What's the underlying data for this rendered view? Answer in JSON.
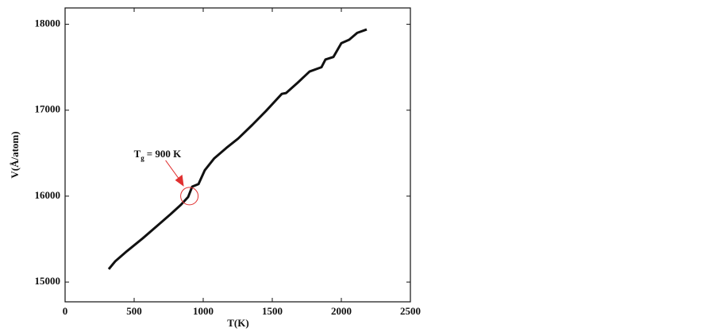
{
  "chart_data": {
    "type": "line",
    "xlabel": "T(K)",
    "ylabel": "V(Å/atom)",
    "xlim": [
      0,
      2500
    ],
    "xticks": [
      0,
      500,
      1000,
      1500,
      2000,
      2500
    ],
    "ylim": [
      14770,
      18190
    ],
    "yticks": [
      15000,
      16000,
      17000,
      18000
    ],
    "series": [
      {
        "color": "#111111",
        "x": [
          316,
          362,
          448,
          563,
          678,
          764,
          839,
          891,
          920,
          966,
          1011,
          1080,
          1167,
          1253,
          1356,
          1454,
          1569,
          1600,
          1684,
          1770,
          1856,
          1885,
          1943,
          2000,
          2057,
          2115,
          2184
        ],
        "values": [
          15150,
          15240,
          15360,
          15510,
          15670,
          15790,
          15900,
          15990,
          16110,
          16140,
          16300,
          16440,
          16560,
          16670,
          16830,
          16990,
          17190,
          17200,
          17320,
          17450,
          17500,
          17590,
          17620,
          17780,
          17820,
          17900,
          17940
        ]
      }
    ],
    "annotation": {
      "text": "T",
      "subscript": "g",
      "rest": "= 900 K",
      "x": 900,
      "y": 16000,
      "color": "#e03030"
    }
  }
}
